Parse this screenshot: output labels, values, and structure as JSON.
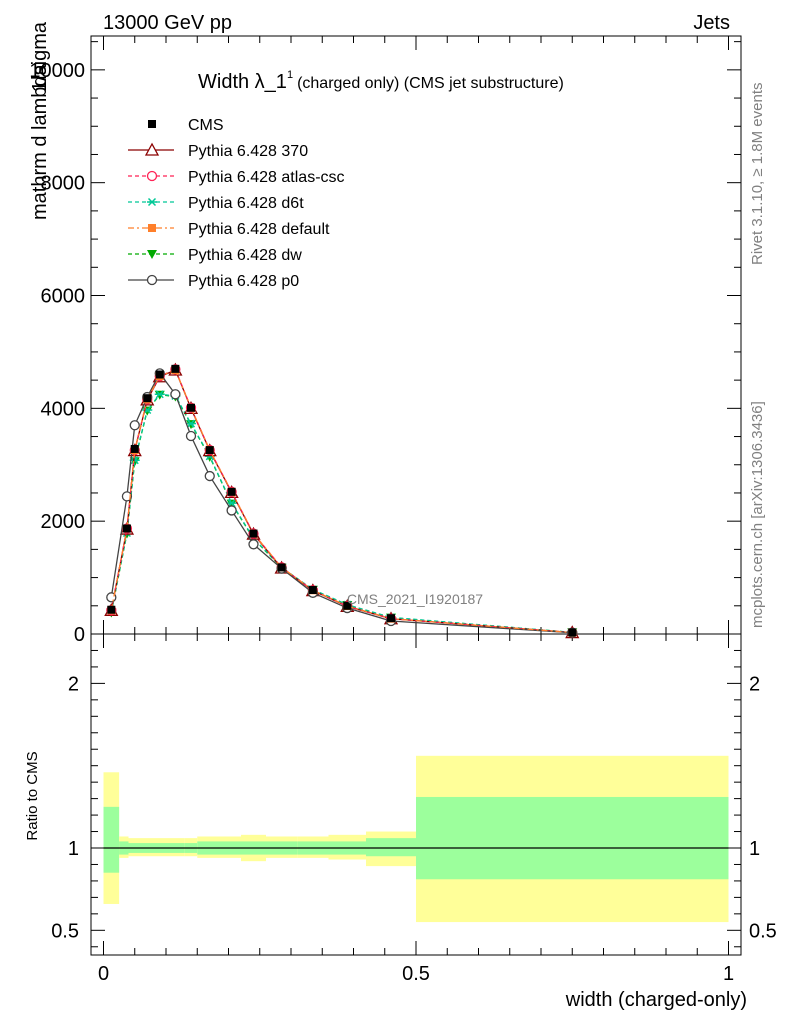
{
  "header": {
    "left": "13000 GeV pp",
    "right": "Jets",
    "side_top": "Rivet 3.1.10, ≥ 1.8M events",
    "side_bottom": "mcplots.cern.ch [arXiv:1306.3436]",
    "watermark": "CMS_2021_I1920187"
  },
  "colors": {
    "cms": "#000000",
    "p370": "#8b0000",
    "atlas": "#ff2255",
    "d6t": "#00c896",
    "default": "#ff7f2a",
    "dw": "#00aa00",
    "p0": "#444444",
    "band_inner": "#9cff9c",
    "band_outer": "#ffff99"
  },
  "chart_data": [
    {
      "type": "line",
      "title_main": "Width λ_1",
      "title_sup": "1",
      "title_rest": "(charged only) (CMS jet substructure)",
      "ylabel": "mathrm d lambda",
      "ylabel_overlap": "1/sigma",
      "xlim": [
        0,
        1
      ],
      "ylim": [
        0,
        10600
      ],
      "yticks": [
        0,
        2000,
        4000,
        6000,
        8000,
        10000
      ],
      "ytick_labels": [
        "0",
        "2000",
        "4000",
        "6000",
        "8000",
        "10000"
      ],
      "x": [
        0.0125,
        0.0375,
        0.05,
        0.07,
        0.09,
        0.115,
        0.14,
        0.17,
        0.205,
        0.24,
        0.285,
        0.335,
        0.39,
        0.46,
        0.75
      ],
      "cms_values": [
        430,
        1870,
        3280,
        4180,
        4600,
        4700,
        4010,
        3260,
        2520,
        1780,
        1180,
        780,
        500,
        280,
        28
      ],
      "series": [
        {
          "name": "CMS",
          "key": "cms",
          "style": "square-filled",
          "values": [
            430,
            1870,
            3280,
            4180,
            4600,
            4700,
            4010,
            3260,
            2520,
            1780,
            1180,
            780,
            500,
            280,
            28
          ]
        },
        {
          "name": "Pythia 6.428 370",
          "key": "p370",
          "style": "triangle-open",
          "values": [
            420,
            1860,
            3250,
            4150,
            4560,
            4680,
            4000,
            3250,
            2510,
            1770,
            1170,
            770,
            490,
            270,
            25
          ]
        },
        {
          "name": "Pythia 6.428 atlas-csc",
          "key": "atlas",
          "style": "circle-open",
          "values": [
            420,
            1870,
            3260,
            4160,
            4570,
            4690,
            4010,
            3260,
            2520,
            1780,
            1180,
            775,
            495,
            272,
            25
          ]
        },
        {
          "name": "Pythia 6.428 d6t",
          "key": "d6t",
          "style": "asterisk",
          "values": [
            390,
            1790,
            3080,
            3970,
            4250,
            4220,
            3730,
            3150,
            2320,
            1700,
            1180,
            790,
            520,
            295,
            28
          ]
        },
        {
          "name": "Pythia 6.428 default",
          "key": "default",
          "style": "square-filled",
          "values": [
            420,
            1870,
            3260,
            4160,
            4570,
            4680,
            4010,
            3260,
            2520,
            1780,
            1180,
            775,
            495,
            272,
            25
          ]
        },
        {
          "name": "Pythia 6.428 dw",
          "key": "dw",
          "style": "triangle-down-filled",
          "values": [
            380,
            1780,
            3060,
            3960,
            4240,
            4210,
            3720,
            3140,
            2310,
            1690,
            1175,
            785,
            515,
            290,
            28
          ]
        },
        {
          "name": "Pythia 6.428 p0",
          "key": "p0",
          "style": "circle-open",
          "values": [
            650,
            2440,
            3700,
            4200,
            4620,
            4250,
            3510,
            2800,
            2190,
            1590,
            1160,
            730,
            460,
            230,
            22
          ]
        }
      ]
    },
    {
      "type": "area",
      "ylabel": "Ratio to CMS",
      "xlabel": "width (charged-only)",
      "xlim": [
        -0.02,
        1.02
      ],
      "ylim": [
        0.35,
        2.3
      ],
      "yticks": [
        0.5,
        1,
        2
      ],
      "ytick_labels": [
        "0.5",
        "1",
        "2"
      ],
      "xticks": [
        0,
        0.5,
        1
      ],
      "xtick_labels": [
        "0",
        "0.5",
        "1"
      ],
      "bin_edges": [
        0,
        0.025,
        0.04,
        0.06,
        0.08,
        0.1,
        0.13,
        0.15,
        0.18,
        0.22,
        0.26,
        0.31,
        0.36,
        0.42,
        0.5,
        1.0
      ],
      "outer_band": [
        [
          0.66,
          1.46
        ],
        [
          0.94,
          1.07
        ],
        [
          0.95,
          1.06
        ],
        [
          0.95,
          1.06
        ],
        [
          0.95,
          1.06
        ],
        [
          0.95,
          1.06
        ],
        [
          0.95,
          1.06
        ],
        [
          0.94,
          1.07
        ],
        [
          0.94,
          1.07
        ],
        [
          0.92,
          1.08
        ],
        [
          0.94,
          1.07
        ],
        [
          0.94,
          1.07
        ],
        [
          0.93,
          1.08
        ],
        [
          0.89,
          1.1
        ],
        [
          0.55,
          1.56
        ]
      ],
      "inner_band": [
        [
          0.85,
          1.25
        ],
        [
          0.96,
          1.04
        ],
        [
          0.97,
          1.03
        ],
        [
          0.97,
          1.03
        ],
        [
          0.97,
          1.03
        ],
        [
          0.97,
          1.03
        ],
        [
          0.97,
          1.03
        ],
        [
          0.96,
          1.04
        ],
        [
          0.96,
          1.04
        ],
        [
          0.96,
          1.04
        ],
        [
          0.96,
          1.04
        ],
        [
          0.96,
          1.04
        ],
        [
          0.96,
          1.04
        ],
        [
          0.95,
          1.06
        ],
        [
          0.81,
          1.31
        ]
      ]
    }
  ]
}
